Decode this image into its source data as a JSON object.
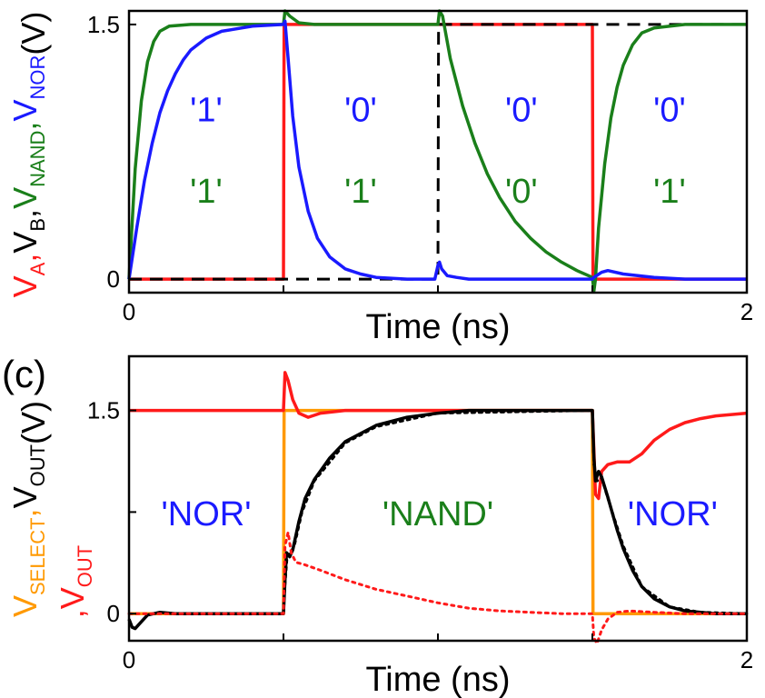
{
  "colors": {
    "red": "#ff1a1a",
    "black": "#000000",
    "green": "#1a7f1a",
    "blue": "#1a1aff",
    "orange": "#ff9900"
  },
  "chart_data": [
    {
      "type": "line",
      "xlabel": "Time (ns)",
      "xlim": [
        0,
        2
      ],
      "ylim": [
        -0.08,
        1.58
      ],
      "x_ticks": [
        {
          "value": 0,
          "label": "0"
        },
        {
          "value": 2,
          "label": "2"
        }
      ],
      "x_minor_ticks": [
        0.5,
        1.0,
        1.5
      ],
      "y_ticks": [
        {
          "value": 0,
          "label": "0"
        },
        {
          "value": 1.5,
          "label": "1.5"
        }
      ],
      "ylabel_parts": [
        {
          "text": "V",
          "sub": "A",
          "color": "#ff1a1a",
          "sep": ","
        },
        {
          "text": "V",
          "sub": "B",
          "color": "#000000",
          "sep": ","
        },
        {
          "text": "V",
          "sub": "NAND",
          "color": "#1a7f1a",
          "sep": ","
        },
        {
          "text": "V",
          "sub": "NOR",
          "color": "#1a1aff",
          "sep": ""
        },
        {
          "text": "(V)",
          "sub": "",
          "color": "#000000",
          "sep": ""
        }
      ],
      "annotations": [
        {
          "text": "'1'",
          "x": 0.25,
          "y": 1.0,
          "color": "#1a1aff"
        },
        {
          "text": "'1'",
          "x": 0.25,
          "y": 0.52,
          "color": "#1a7f1a"
        },
        {
          "text": "'0'",
          "x": 0.75,
          "y": 1.0,
          "color": "#1a1aff"
        },
        {
          "text": "'1'",
          "x": 0.75,
          "y": 0.52,
          "color": "#1a7f1a"
        },
        {
          "text": "'0'",
          "x": 1.27,
          "y": 1.0,
          "color": "#1a1aff"
        },
        {
          "text": "'0'",
          "x": 1.27,
          "y": 0.52,
          "color": "#1a7f1a"
        },
        {
          "text": "'0'",
          "x": 1.75,
          "y": 1.0,
          "color": "#1a1aff"
        },
        {
          "text": "'1'",
          "x": 1.75,
          "y": 0.52,
          "color": "#1a7f1a"
        }
      ],
      "series": [
        {
          "name": "V_A",
          "color": "#ff1a1a",
          "style": "solid",
          "width": 3.5,
          "points": [
            [
              0,
              0
            ],
            [
              0.5,
              0
            ],
            [
              0.502,
              1.5
            ],
            [
              1.5,
              1.5
            ],
            [
              1.502,
              0
            ],
            [
              2,
              0
            ]
          ]
        },
        {
          "name": "V_B",
          "color": "#000000",
          "style": "dashed",
          "width": 3,
          "points": [
            [
              0,
              0
            ],
            [
              1.0,
              0
            ],
            [
              1.002,
              1.5
            ],
            [
              2,
              1.5
            ]
          ]
        },
        {
          "name": "V_NAND",
          "color": "#1a7f1a",
          "style": "solid",
          "width": 3.5,
          "points": [
            [
              0,
              0.0
            ],
            [
              0.02,
              0.65
            ],
            [
              0.04,
              1.05
            ],
            [
              0.06,
              1.28
            ],
            [
              0.08,
              1.4
            ],
            [
              0.1,
              1.46
            ],
            [
              0.13,
              1.49
            ],
            [
              0.2,
              1.5
            ],
            [
              0.5,
              1.5
            ],
            [
              0.505,
              1.58
            ],
            [
              0.52,
              1.55
            ],
            [
              0.55,
              1.51
            ],
            [
              0.6,
              1.5
            ],
            [
              1.0,
              1.5
            ],
            [
              1.005,
              1.58
            ],
            [
              1.015,
              1.55
            ],
            [
              1.04,
              1.3
            ],
            [
              1.08,
              1.02
            ],
            [
              1.12,
              0.8
            ],
            [
              1.16,
              0.62
            ],
            [
              1.2,
              0.48
            ],
            [
              1.25,
              0.34
            ],
            [
              1.3,
              0.24
            ],
            [
              1.35,
              0.16
            ],
            [
              1.4,
              0.1
            ],
            [
              1.45,
              0.05
            ],
            [
              1.5,
              0.01
            ],
            [
              1.505,
              -0.07
            ],
            [
              1.51,
              0.0
            ],
            [
              1.52,
              0.3
            ],
            [
              1.54,
              0.68
            ],
            [
              1.56,
              0.95
            ],
            [
              1.58,
              1.13
            ],
            [
              1.6,
              1.26
            ],
            [
              1.63,
              1.38
            ],
            [
              1.66,
              1.45
            ],
            [
              1.7,
              1.48
            ],
            [
              1.8,
              1.5
            ],
            [
              2,
              1.5
            ]
          ]
        },
        {
          "name": "V_NOR",
          "color": "#1a1aff",
          "style": "solid",
          "width": 3.5,
          "points": [
            [
              0,
              0
            ],
            [
              0.025,
              0.3
            ],
            [
              0.05,
              0.58
            ],
            [
              0.075,
              0.8
            ],
            [
              0.1,
              0.98
            ],
            [
              0.125,
              1.11
            ],
            [
              0.15,
              1.21
            ],
            [
              0.175,
              1.29
            ],
            [
              0.2,
              1.35
            ],
            [
              0.25,
              1.42
            ],
            [
              0.3,
              1.46
            ],
            [
              0.4,
              1.49
            ],
            [
              0.5,
              1.5
            ],
            [
              0.505,
              1.52
            ],
            [
              0.515,
              1.3
            ],
            [
              0.53,
              0.96
            ],
            [
              0.55,
              0.66
            ],
            [
              0.58,
              0.4
            ],
            [
              0.61,
              0.24
            ],
            [
              0.65,
              0.13
            ],
            [
              0.7,
              0.06
            ],
            [
              0.75,
              0.03
            ],
            [
              0.8,
              0.01
            ],
            [
              0.9,
              0.0
            ],
            [
              0.99,
              0.0
            ],
            [
              1.0,
              0.08
            ],
            [
              1.005,
              0.1
            ],
            [
              1.012,
              0.06
            ],
            [
              1.03,
              0.02
            ],
            [
              1.06,
              0.01
            ],
            [
              1.1,
              0.0
            ],
            [
              1.5,
              0.0
            ],
            [
              1.505,
              0.01
            ],
            [
              1.53,
              0.04
            ],
            [
              1.55,
              0.05
            ],
            [
              1.6,
              0.03
            ],
            [
              1.7,
              0.01
            ],
            [
              1.8,
              0.0
            ],
            [
              2,
              0.0
            ]
          ]
        }
      ]
    },
    {
      "type": "line",
      "panel_label": "(c)",
      "xlabel": "Time (ns)",
      "xlim": [
        0,
        2
      ],
      "ylim": [
        -0.2,
        1.9
      ],
      "x_ticks": [
        {
          "value": 0,
          "label": "0"
        },
        {
          "value": 2,
          "label": "2"
        }
      ],
      "x_minor_ticks": [
        0.5,
        1.0,
        1.5
      ],
      "y_ticks": [
        {
          "value": 0,
          "label": "0"
        },
        {
          "value": 0.75,
          "label": ""
        },
        {
          "value": 1.5,
          "label": "1.5"
        }
      ],
      "ylabel_line1": [
        {
          "text": "V",
          "sub": "SELECT",
          "color": "#ff9900",
          "sep": ","
        },
        {
          "text": "V",
          "sub": "OUT",
          "color": "#000000",
          "sep": ""
        },
        {
          "text": "(V)",
          "sub": "",
          "color": "#000000",
          "sep": ""
        }
      ],
      "ylabel_line2": [
        {
          "text": ",V",
          "sub": "OUT",
          "color": "#ff1a1a",
          "sep": ""
        }
      ],
      "annotations": [
        {
          "text": "'NOR'",
          "x": 0.25,
          "y": 0.74,
          "color": "#1a1aff"
        },
        {
          "text": "'NAND'",
          "x": 1.0,
          "y": 0.74,
          "color": "#1a7f1a"
        },
        {
          "text": "'NOR'",
          "x": 1.76,
          "y": 0.74,
          "color": "#1a1aff"
        }
      ],
      "series": [
        {
          "name": "V_SELECT",
          "color": "#ff9900",
          "style": "solid",
          "width": 3.5,
          "points": [
            [
              0,
              0
            ],
            [
              0.5,
              0
            ],
            [
              0.502,
              1.5
            ],
            [
              1.5,
              1.5
            ],
            [
              1.502,
              0
            ],
            [
              2,
              0
            ]
          ]
        },
        {
          "name": "V_OUT red solid",
          "color": "#ff1a1a",
          "style": "solid",
          "width": 3.5,
          "points": [
            [
              0,
              1.5
            ],
            [
              0.5,
              1.5
            ],
            [
              0.505,
              1.78
            ],
            [
              0.515,
              1.72
            ],
            [
              0.53,
              1.58
            ],
            [
              0.55,
              1.48
            ],
            [
              0.58,
              1.45
            ],
            [
              0.62,
              1.48
            ],
            [
              0.7,
              1.5
            ],
            [
              1.5,
              1.5
            ],
            [
              1.505,
              1.2
            ],
            [
              1.51,
              0.88
            ],
            [
              1.52,
              0.85
            ],
            [
              1.53,
              1.05
            ],
            [
              1.55,
              1.1
            ],
            [
              1.58,
              1.12
            ],
            [
              1.62,
              1.12
            ],
            [
              1.66,
              1.18
            ],
            [
              1.7,
              1.28
            ],
            [
              1.75,
              1.36
            ],
            [
              1.8,
              1.41
            ],
            [
              1.85,
              1.44
            ],
            [
              1.9,
              1.46
            ],
            [
              2,
              1.48
            ]
          ]
        },
        {
          "name": "V_OUT black solid",
          "color": "#000000",
          "style": "solid",
          "width": 3.5,
          "points": [
            [
              0,
              -0.04
            ],
            [
              0.01,
              -0.1
            ],
            [
              0.02,
              -0.11
            ],
            [
              0.04,
              -0.06
            ],
            [
              0.06,
              -0.01
            ],
            [
              0.1,
              0.01
            ],
            [
              0.15,
              0.0
            ],
            [
              0.5,
              0.0
            ],
            [
              0.505,
              0.25
            ],
            [
              0.51,
              0.45
            ],
            [
              0.52,
              0.42
            ],
            [
              0.53,
              0.47
            ],
            [
              0.55,
              0.68
            ],
            [
              0.57,
              0.85
            ],
            [
              0.6,
              0.99
            ],
            [
              0.65,
              1.15
            ],
            [
              0.7,
              1.27
            ],
            [
              0.8,
              1.39
            ],
            [
              0.9,
              1.45
            ],
            [
              1.0,
              1.48
            ],
            [
              1.1,
              1.5
            ],
            [
              1.5,
              1.5
            ],
            [
              1.505,
              1.15
            ],
            [
              1.51,
              0.98
            ],
            [
              1.52,
              1.05
            ],
            [
              1.53,
              1.01
            ],
            [
              1.55,
              0.86
            ],
            [
              1.58,
              0.62
            ],
            [
              1.6,
              0.48
            ],
            [
              1.63,
              0.32
            ],
            [
              1.66,
              0.2
            ],
            [
              1.7,
              0.11
            ],
            [
              1.75,
              0.05
            ],
            [
              1.8,
              0.02
            ],
            [
              1.9,
              0.0
            ],
            [
              2,
              0.0
            ]
          ]
        },
        {
          "name": "V_OUT black dotted",
          "color": "#000000",
          "style": "dotted",
          "width": 3,
          "points": [
            [
              0.5,
              0.0
            ],
            [
              0.505,
              0.22
            ],
            [
              0.512,
              0.43
            ],
            [
              0.52,
              0.44
            ],
            [
              0.535,
              0.5
            ],
            [
              0.56,
              0.75
            ],
            [
              0.6,
              0.98
            ],
            [
              0.7,
              1.26
            ],
            [
              0.8,
              1.38
            ],
            [
              1.0,
              1.48
            ],
            [
              1.5,
              1.5
            ],
            [
              1.505,
              1.1
            ],
            [
              1.515,
              0.98
            ],
            [
              1.53,
              1.0
            ],
            [
              1.56,
              0.78
            ],
            [
              1.6,
              0.5
            ],
            [
              1.66,
              0.2
            ],
            [
              1.75,
              0.05
            ],
            [
              1.85,
              0.01
            ],
            [
              2,
              0.0
            ]
          ]
        },
        {
          "name": "V_OUT red dotted",
          "color": "#ff1a1a",
          "style": "dotted",
          "width": 3,
          "points": [
            [
              0,
              0
            ],
            [
              0.5,
              0
            ],
            [
              0.505,
              0.5
            ],
            [
              0.515,
              0.6
            ],
            [
              0.525,
              0.45
            ],
            [
              0.54,
              0.38
            ],
            [
              0.57,
              0.36
            ],
            [
              0.62,
              0.32
            ],
            [
              0.7,
              0.25
            ],
            [
              0.8,
              0.18
            ],
            [
              0.9,
              0.13
            ],
            [
              1.0,
              0.08
            ],
            [
              1.1,
              0.04
            ],
            [
              1.2,
              0.02
            ],
            [
              1.3,
              0.01
            ],
            [
              1.4,
              0.0
            ],
            [
              1.5,
              0.0
            ],
            [
              1.505,
              -0.18
            ],
            [
              1.515,
              -0.22
            ],
            [
              1.53,
              -0.12
            ],
            [
              1.55,
              -0.04
            ],
            [
              1.58,
              0.01
            ],
            [
              1.62,
              0.02
            ],
            [
              1.7,
              0.01
            ],
            [
              1.8,
              0.0
            ],
            [
              2,
              0.0
            ]
          ]
        }
      ]
    }
  ]
}
